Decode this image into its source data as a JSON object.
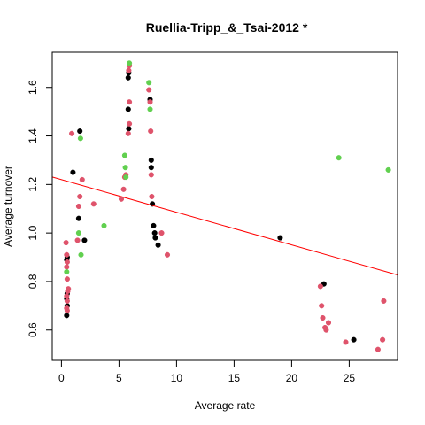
{
  "chart_data": {
    "type": "scatter",
    "title": "Ruellia-Tripp_&_Tsai-2012 *",
    "xlabel": "Average rate",
    "ylabel": "Average turnover",
    "xlim": [
      -0.8,
      29.2
    ],
    "ylim": [
      0.475,
      1.745
    ],
    "x_ticks": [
      0,
      5,
      10,
      15,
      20,
      25
    ],
    "y_ticks": [
      0.6,
      0.8,
      1.0,
      1.2,
      1.4,
      1.6
    ],
    "y_tick_labels": [
      "0.6",
      "0.8",
      "1.0",
      "1.2",
      "1.4",
      "1.6"
    ],
    "grid": false,
    "regression_line": {
      "intercept": 1.22,
      "slope": -0.01345,
      "color": "#ff0000"
    },
    "colors": {
      "black": "#000000",
      "red": "#df536b",
      "green": "#61d04f"
    },
    "series": [
      {
        "color_key": "black",
        "points": [
          [
            0.45,
            0.66
          ],
          [
            0.5,
            0.7
          ],
          [
            0.45,
            0.73
          ],
          [
            0.5,
            0.75
          ],
          [
            0.45,
            0.89
          ],
          [
            0.5,
            0.9
          ],
          [
            1.0,
            1.25
          ],
          [
            1.5,
            1.06
          ],
          [
            1.6,
            1.42
          ],
          [
            2.0,
            0.97
          ],
          [
            5.85,
            1.66
          ],
          [
            5.8,
            1.64
          ],
          [
            5.8,
            1.51
          ],
          [
            5.85,
            1.43
          ],
          [
            7.7,
            1.55
          ],
          [
            7.8,
            1.3
          ],
          [
            7.8,
            1.27
          ],
          [
            7.9,
            1.12
          ],
          [
            8.0,
            1.03
          ],
          [
            8.1,
            1.0
          ],
          [
            8.15,
            0.98
          ],
          [
            8.4,
            0.95
          ],
          [
            19.0,
            0.98
          ],
          [
            22.8,
            0.79
          ],
          [
            25.4,
            0.56
          ]
        ]
      },
      {
        "color_key": "red",
        "points": [
          [
            0.4,
            0.96
          ],
          [
            0.45,
            0.91
          ],
          [
            0.5,
            0.88
          ],
          [
            0.45,
            0.86
          ],
          [
            0.5,
            0.81
          ],
          [
            0.6,
            0.77
          ],
          [
            0.55,
            0.76
          ],
          [
            0.45,
            0.74
          ],
          [
            0.5,
            0.72
          ],
          [
            0.45,
            0.69
          ],
          [
            0.5,
            0.68
          ],
          [
            0.9,
            1.41
          ],
          [
            1.4,
            0.97
          ],
          [
            1.5,
            1.11
          ],
          [
            1.6,
            1.15
          ],
          [
            1.8,
            1.22
          ],
          [
            2.8,
            1.12
          ],
          [
            5.2,
            1.14
          ],
          [
            5.4,
            1.18
          ],
          [
            5.5,
            1.23
          ],
          [
            5.6,
            1.24
          ],
          [
            5.8,
            1.41
          ],
          [
            5.9,
            1.45
          ],
          [
            5.9,
            1.54
          ],
          [
            5.85,
            1.67
          ],
          [
            5.9,
            1.69
          ],
          [
            7.6,
            1.59
          ],
          [
            7.7,
            1.54
          ],
          [
            7.75,
            1.42
          ],
          [
            7.8,
            1.24
          ],
          [
            7.85,
            1.15
          ],
          [
            8.7,
            1.0
          ],
          [
            9.2,
            0.91
          ],
          [
            22.5,
            0.78
          ],
          [
            22.6,
            0.7
          ],
          [
            22.7,
            0.65
          ],
          [
            22.9,
            0.61
          ],
          [
            23.0,
            0.6
          ],
          [
            23.2,
            0.63
          ],
          [
            24.7,
            0.55
          ],
          [
            27.5,
            0.52
          ],
          [
            27.9,
            0.56
          ],
          [
            28.0,
            0.72
          ]
        ]
      },
      {
        "color_key": "green",
        "points": [
          [
            0.45,
            0.84
          ],
          [
            1.5,
            1.0
          ],
          [
            1.65,
            1.39
          ],
          [
            1.7,
            0.91
          ],
          [
            3.7,
            1.03
          ],
          [
            5.5,
            1.32
          ],
          [
            5.55,
            1.27
          ],
          [
            5.6,
            1.23
          ],
          [
            5.9,
            1.7
          ],
          [
            7.6,
            1.62
          ],
          [
            7.7,
            1.51
          ],
          [
            24.1,
            1.31
          ],
          [
            28.4,
            1.26
          ]
        ]
      }
    ]
  }
}
